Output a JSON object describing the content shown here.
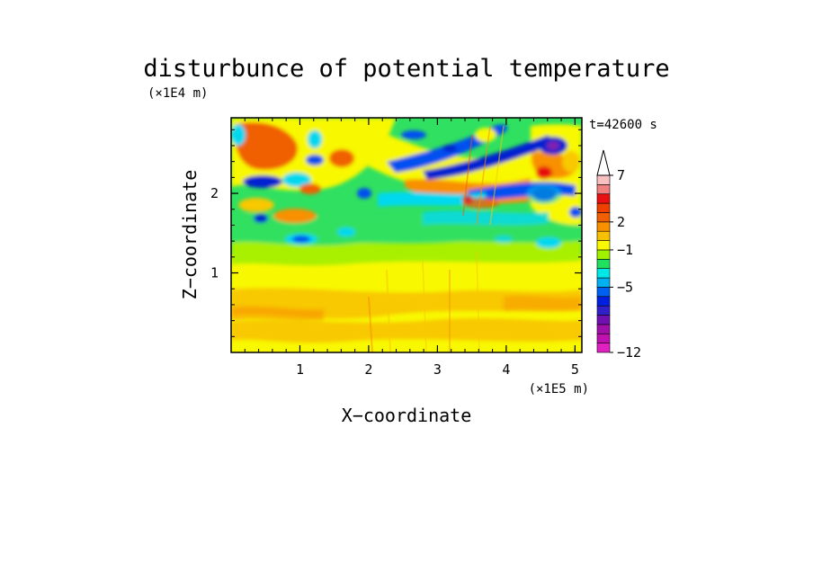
{
  "chart_data": {
    "type": "heatmap",
    "title": "disturbunce of potential temperature",
    "time_label": "t=42600 s",
    "xlabel": "X−coordinate",
    "ylabel": "Z−coordinate",
    "x_unit_label": "(×1E5 m)",
    "y_unit_label": "(×1E4 m)",
    "xlim": [
      0,
      5.1
    ],
    "ylim": [
      0,
      2.95
    ],
    "x_ticks": [
      1,
      2,
      3,
      4,
      5
    ],
    "y_ticks": [
      1,
      2
    ],
    "x_tick_labels": [
      "1",
      "2",
      "3",
      "4",
      "5"
    ],
    "y_tick_labels": [
      "1",
      "2"
    ],
    "colorbar": {
      "levels": [
        -12,
        -11,
        -10,
        -9,
        -8,
        -7,
        -6,
        -5,
        -4,
        -3,
        -2,
        -1,
        0,
        1,
        2,
        3,
        4,
        5,
        6,
        7,
        8,
        9,
        10
      ],
      "colors": [
        "#e020c0",
        "#c010b0",
        "#a010a8",
        "#7010b0",
        "#3020c8",
        "#0020e0",
        "#0060f0",
        "#00b0f0",
        "#00e8e8",
        "#20e060",
        "#a0f000",
        "#f8f800",
        "#f8c000",
        "#f89000",
        "#f06000",
        "#f04000",
        "#e81010",
        "#f08080",
        "#f8c0c0"
      ],
      "tick_labels": [
        {
          "value": -12,
          "label": "−12"
        },
        {
          "value": -5,
          "label": "−5"
        },
        {
          "value": -1,
          "label": "−1"
        },
        {
          "value": 2,
          "label": "2"
        },
        {
          "value": 7,
          "label": "7"
        }
      ],
      "extend": "max"
    },
    "palette": {
      "deep_blue": "#0020d0",
      "blue": "#0050f0",
      "cyan": "#00d8f0",
      "green": "#30e060",
      "lime": "#a8f000",
      "yellow": "#f8f800",
      "light_orange": "#f8c800",
      "orange": "#f89000",
      "dark_orange": "#f06000",
      "red": "#e81010",
      "purple": "#8020b0"
    }
  }
}
